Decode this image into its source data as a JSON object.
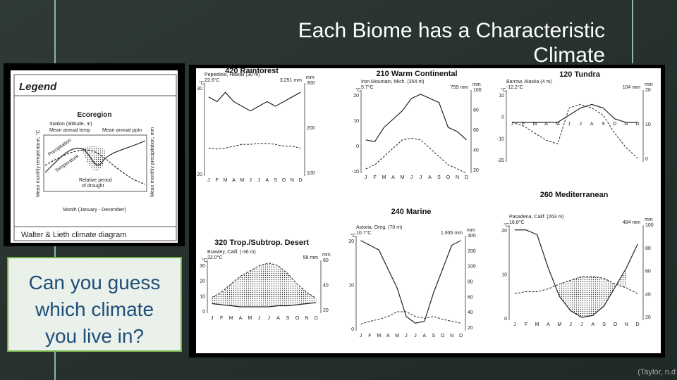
{
  "title_lines": [
    "Each Biome has a Characteristic",
    "Climate"
  ],
  "question_lines": [
    "Can you guess",
    "which climate",
    "you live in?"
  ],
  "citation": "(Taylor, n.d",
  "legend": {
    "heading": "Legend",
    "ecoregion": "Ecoregion",
    "station": "Station (altitude, m)",
    "mean_temp": "Mean annual temp",
    "mean_precip": "Mean annual pptn",
    "y_left": "Mean monthly temperature, °C",
    "y_right": "Mean monthly precipitation, mm",
    "precipitation": "Precipitation",
    "temperature": "Temperature",
    "drought_1": "Relative period",
    "drought_2": "of drought",
    "x_label": "Month (January - December)",
    "caption": "Walter & Lieth climate diagram"
  },
  "months": [
    "J",
    "F",
    "M",
    "A",
    "M",
    "J",
    "J",
    "A",
    "S",
    "O",
    "N",
    "D"
  ],
  "diagrams": [
    {
      "title": "420 Rainforest",
      "station": "Pepeekeo, Hawaii (30 m)",
      "temp": "22.6°C",
      "precip": "3,251 mm",
      "left_unit": "°C",
      "left_ticks": [
        30,
        20
      ],
      "right_unit": "mm",
      "right_ticks": [
        300,
        200,
        100
      ]
    },
    {
      "title": "210 Warm Continental",
      "station": "Iron Mountain, Mich. (354 m)",
      "temp": "5.7°C",
      "precip": "759 mm",
      "left_unit": "°C",
      "left_ticks": [
        20,
        10,
        0,
        -10
      ],
      "right_unit": "mm",
      "right_ticks": [
        100,
        80,
        60,
        40,
        20
      ]
    },
    {
      "title": "120 Tundra",
      "station": "Barrow, Alaska (4 m)",
      "temp": "-12.2°C",
      "precip": "104 mm",
      "left_unit": "°C",
      "left_ticks": [
        10,
        0,
        -10,
        -20
      ],
      "right_unit": "mm",
      "right_ticks": [
        20,
        10,
        0
      ]
    },
    {
      "title": "260 Mediterranean",
      "station": "Pasadena, Calif. (263 m)",
      "temp": "16.8°C",
      "precip": "484 mm",
      "left_unit": "°C",
      "left_ticks": [
        20,
        10,
        0
      ],
      "right_unit": "mm",
      "right_ticks": [
        100,
        80,
        60,
        40,
        20
      ]
    },
    {
      "title": "240 Marine",
      "station": "Astoria, Oreg. (70 m)",
      "temp": "10.7°C",
      "precip": "1,935 mm",
      "left_unit": "°C",
      "left_ticks": [
        20,
        10,
        0
      ],
      "right_unit": "mm",
      "right_ticks": [
        300,
        200,
        100,
        80,
        60,
        40,
        20
      ]
    },
    {
      "title": "320 Trop./Subtrop. Desert",
      "station": "Brawley, Calif. (-36 m)",
      "temp": "22.0°C",
      "precip": "58 mm",
      "left_unit": "°C",
      "left_ticks": [
        30,
        20,
        10,
        0
      ],
      "right_unit": "mm",
      "right_ticks": [
        60,
        40,
        20
      ]
    }
  ]
}
